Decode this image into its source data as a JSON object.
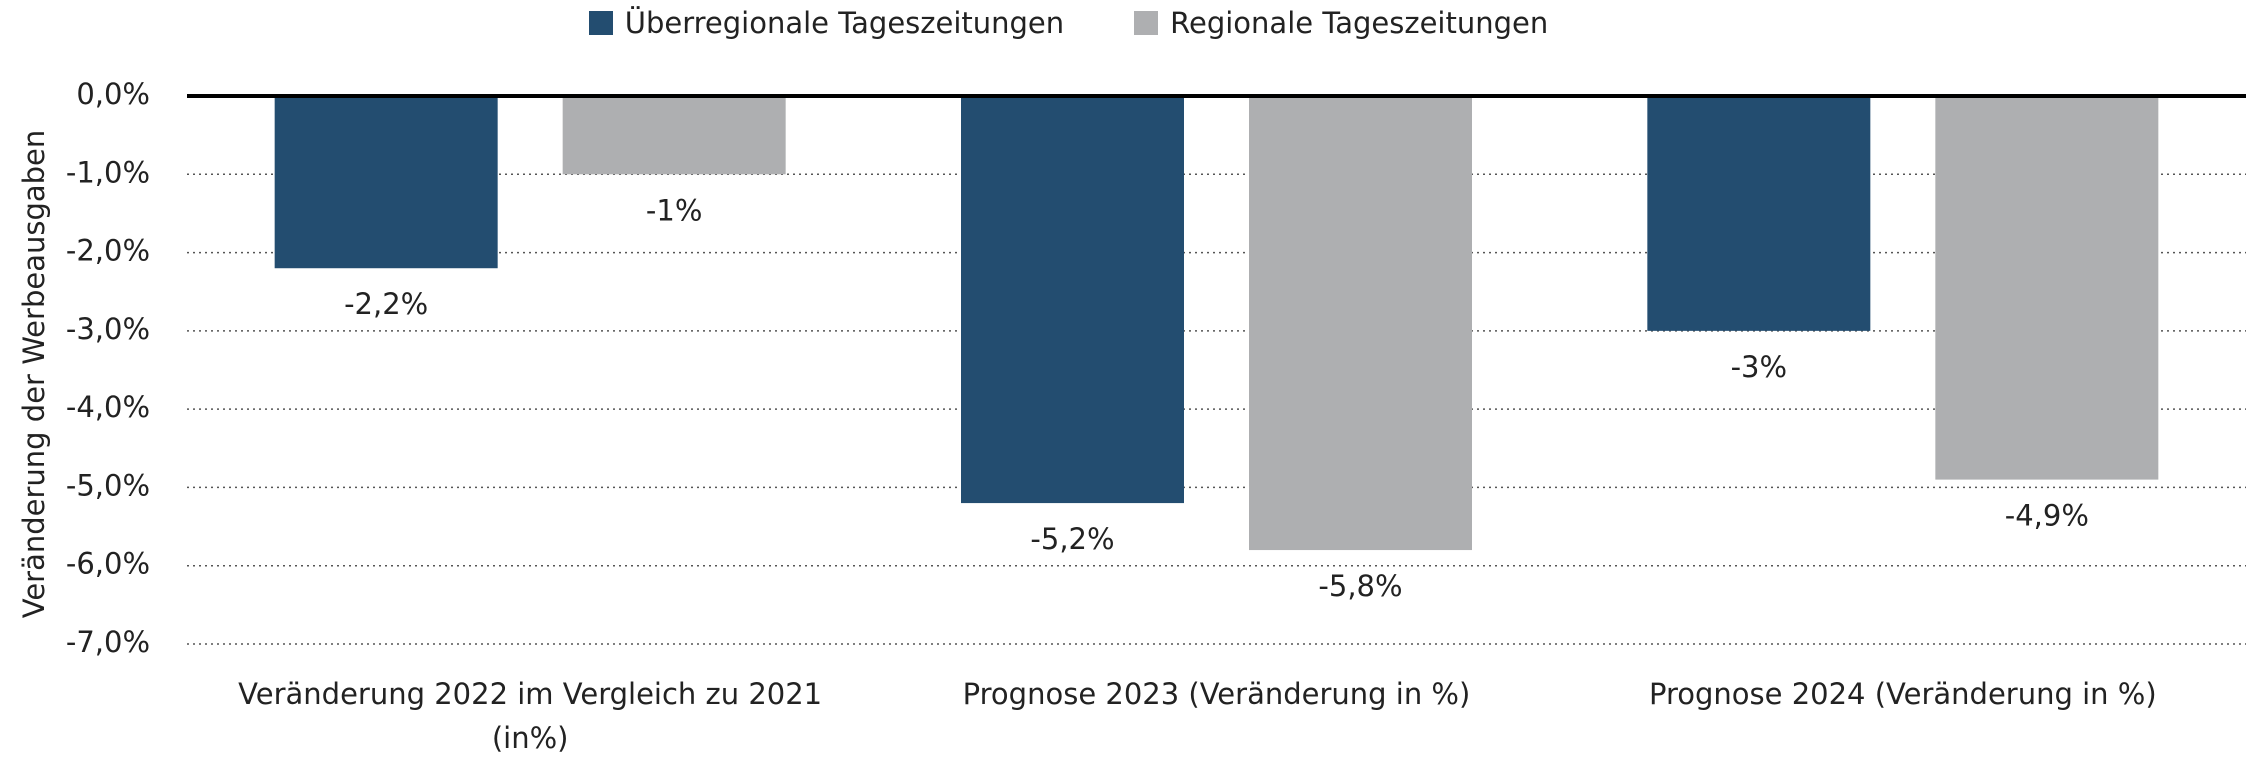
{
  "chart_data": {
    "type": "bar",
    "y_axis_label": "Veränderung der Werbeausgaben",
    "categories": [
      "Veränderung 2022 im Vergleich zu 2021 (in%)",
      "Prognose 2023 (Veränderung in %)",
      "Prognose 2024 (Veränderung in %)"
    ],
    "series": [
      {
        "name": "Überregionale Tageszeitungen",
        "color": "#234d70",
        "values": [
          -2.2,
          -5.2,
          -3
        ],
        "value_labels": [
          "-2,2%",
          "-5,2%",
          "-3%"
        ]
      },
      {
        "name": "Regionale Tageszeitungen",
        "color": "#aeafb1",
        "values": [
          -1,
          -5.8,
          -4.9
        ],
        "value_labels": [
          "-1%",
          "-5,8%",
          "-4,9%"
        ]
      }
    ],
    "ylim": [
      -7,
      0
    ],
    "yticks": [
      {
        "value": 0,
        "label": "0,0%"
      },
      {
        "value": -1,
        "label": "-1,0%"
      },
      {
        "value": -2,
        "label": "-2,0%"
      },
      {
        "value": -3,
        "label": "-3,0%"
      },
      {
        "value": -4,
        "label": "-4,0%"
      },
      {
        "value": -5,
        "label": "-5,0%"
      },
      {
        "value": -6,
        "label": "-6,0%"
      },
      {
        "value": -7,
        "label": "-7,0%"
      }
    ],
    "grid": true,
    "legend": "top"
  }
}
